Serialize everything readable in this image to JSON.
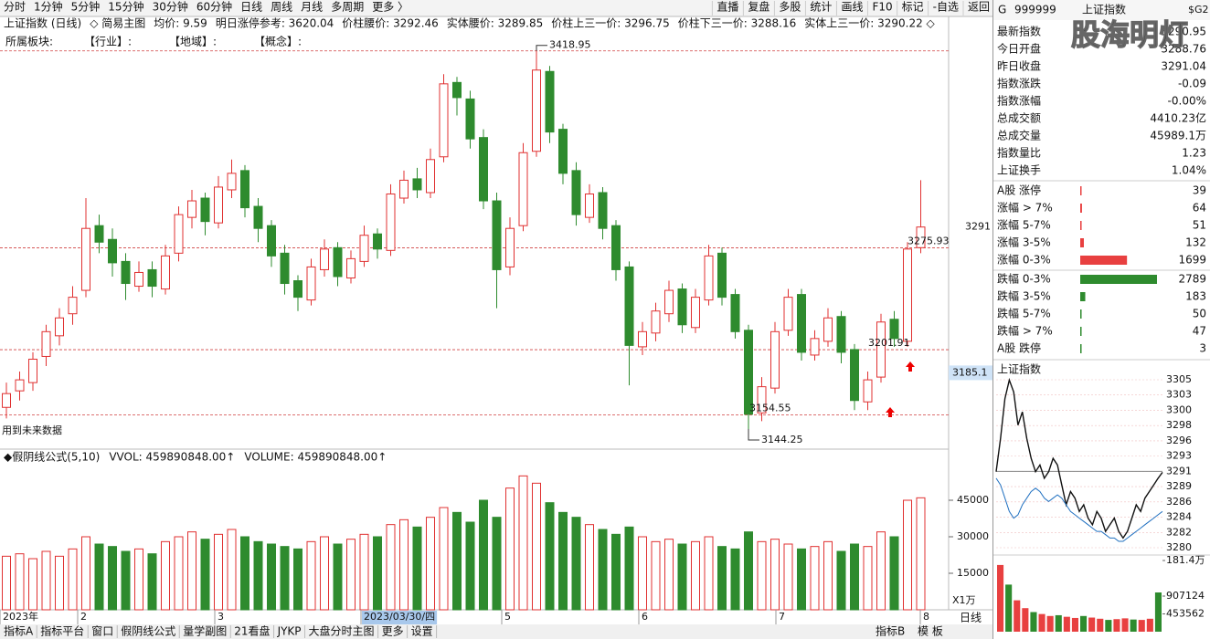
{
  "toolbar": {
    "left": [
      "分时",
      "1分钟",
      "5分钟",
      "15分钟",
      "30分钟",
      "60分钟",
      "日线",
      "周线",
      "月线",
      "多周期",
      "更多 〉"
    ],
    "right": [
      "直播",
      "复盘",
      "多股",
      "统计",
      "画线",
      "F10",
      "标记",
      "-自选",
      "返回"
    ]
  },
  "info_bar": [
    "上证指数 (日线)",
    "◇ 简易主图",
    "均价: 9.59",
    "明日涨停参考: 3620.04",
    "价柱腰价: 3292.46",
    "实体腰价: 3289.85",
    "价柱上三一价: 3296.75",
    "价柱下三一价: 3288.16",
    "实体上三一价: 3290.22 ◇"
  ],
  "sector_line": [
    "所属板块:",
    "【行业】:",
    "【地域】:",
    "【概念】:"
  ],
  "chart_data": {
    "type": "candlestick",
    "open": [
      3160,
      3172,
      3178,
      3197,
      3212,
      3228,
      3245,
      3292,
      3282,
      3266,
      3248,
      3260,
      3246,
      3272,
      3298,
      3312,
      3294,
      3318,
      3332,
      3306,
      3292,
      3272,
      3252,
      3238,
      3260,
      3276,
      3254,
      3266,
      3286,
      3274,
      3312,
      3326,
      3316,
      3342,
      3396,
      3384,
      3356,
      3310,
      3262,
      3292,
      3346,
      3404,
      3362,
      3332,
      3298,
      3316,
      3292,
      3262,
      3204,
      3214,
      3228,
      3246,
      3218,
      3238,
      3272,
      3242,
      3216,
      3156,
      3174,
      3216,
      3242,
      3198,
      3208,
      3226,
      3202,
      3164,
      3182,
      3224,
      3208,
      3276
    ],
    "high": [
      3178,
      3186,
      3200,
      3220,
      3232,
      3248,
      3312,
      3300,
      3290,
      3272,
      3266,
      3266,
      3278,
      3306,
      3318,
      3316,
      3328,
      3340,
      3336,
      3312,
      3296,
      3278,
      3256,
      3268,
      3282,
      3280,
      3274,
      3292,
      3290,
      3322,
      3332,
      3334,
      3348,
      3402,
      3400,
      3390,
      3362,
      3316,
      3298,
      3352,
      3418.95,
      3408,
      3366,
      3338,
      3322,
      3320,
      3296,
      3266,
      3222,
      3236,
      3252,
      3250,
      3246,
      3278,
      3276,
      3246,
      3220,
      3182,
      3222,
      3246,
      3246,
      3216,
      3232,
      3230,
      3206,
      3186,
      3228,
      3230,
      3280,
      3325
    ],
    "low": [
      3152,
      3165,
      3172,
      3190,
      3205,
      3220,
      3240,
      3272,
      3255,
      3238,
      3244,
      3240,
      3242,
      3266,
      3290,
      3285,
      3290,
      3312,
      3298,
      3280,
      3262,
      3242,
      3230,
      3234,
      3255,
      3248,
      3250,
      3262,
      3268,
      3270,
      3308,
      3312,
      3312,
      3338,
      3372,
      3348,
      3304,
      3232,
      3256,
      3288,
      3342,
      3352,
      3322,
      3292,
      3294,
      3282,
      3252,
      3176,
      3198,
      3208,
      3222,
      3214,
      3214,
      3234,
      3234,
      3210,
      3144.25,
      3150,
      3170,
      3212,
      3194,
      3194,
      3204,
      3192,
      3158,
      3158,
      3178,
      3204,
      3204,
      3272
    ],
    "close": [
      3170,
      3180,
      3195,
      3215,
      3225,
      3240,
      3290,
      3280,
      3265,
      3250,
      3258,
      3248,
      3270,
      3300,
      3310,
      3295,
      3320,
      3330,
      3305,
      3290,
      3270,
      3250,
      3240,
      3262,
      3275,
      3255,
      3268,
      3285,
      3275,
      3315,
      3325,
      3318,
      3340,
      3395,
      3385,
      3355,
      3310,
      3260,
      3290,
      3345,
      3405,
      3360,
      3330,
      3300,
      3315,
      3290,
      3260,
      3205,
      3215,
      3230,
      3245,
      3220,
      3240,
      3270,
      3240,
      3215,
      3155,
      3175,
      3215,
      3240,
      3200,
      3210,
      3225,
      3200,
      3165,
      3180,
      3222,
      3210,
      3275,
      3291
    ],
    "ylim": [
      3131,
      3436
    ],
    "colors": {
      "up": "#e03030",
      "down": "#2e8b2e",
      "line": "#d04040"
    },
    "price_lines": [
      3418.95,
      3275.93,
      3201.91,
      3154.55
    ],
    "high_label": 3418.95,
    "low_label": 3144.25,
    "axis_labels": [
      3291,
      3185.1
    ],
    "note": "用到未来数据",
    "x_labels": [
      "2023年",
      "2",
      "3",
      "2023/03/30/四",
      "5",
      "6",
      "7",
      "8"
    ],
    "volume": {
      "title": "◆假阴线公式(5,10)",
      "vvol": "VVOL: 459890848.00↑",
      "volume_label": "VOLUME: 459890848.00↑",
      "values": [
        22000,
        23000,
        21000,
        24000,
        22000,
        25000,
        30000,
        27000,
        26000,
        24000,
        25000,
        23000,
        28000,
        30000,
        32000,
        29000,
        31000,
        33000,
        30000,
        28000,
        27000,
        26000,
        25000,
        28000,
        30000,
        27000,
        29000,
        31000,
        30000,
        35000,
        37000,
        34000,
        38000,
        42000,
        40000,
        36000,
        45000,
        38000,
        50000,
        55000,
        52000,
        44000,
        40000,
        38000,
        35000,
        33000,
        31000,
        34000,
        30000,
        28000,
        29000,
        27000,
        28000,
        30000,
        26000,
        25000,
        32000,
        28000,
        29000,
        27000,
        25000,
        26000,
        28000,
        24000,
        27000,
        26000,
        32000,
        30000,
        45000,
        46000
      ],
      "ylim": [
        0,
        60000
      ],
      "yticks": [
        45000,
        30000,
        15000
      ],
      "unit": "X1万"
    }
  },
  "right_panel": {
    "header": {
      "prefix": "G",
      "code": "999999",
      "name": "上证指数",
      "badge": "$G2"
    },
    "watermark": "股海明灯",
    "stats": [
      {
        "label": "最新指数",
        "value": "3290.95",
        "color": "#e03030"
      },
      {
        "label": "今日开盘",
        "value": "3288.76",
        "color": "#1a8a1a"
      },
      {
        "label": "昨日收盘",
        "value": "3291.04",
        "color": "#111"
      },
      {
        "label": "指数涨跌",
        "value": "-0.09",
        "color": "#1a8a1a"
      },
      {
        "label": "指数涨幅",
        "value": "-0.00%",
        "color": "#1a8a1a"
      },
      {
        "label": "总成交额",
        "value": "4410.23亿",
        "color": "#111"
      },
      {
        "label": "总成交量",
        "value": "45989.1万",
        "color": "#111"
      },
      {
        "label": "指数量比",
        "value": "1.23",
        "color": "#e03030"
      },
      {
        "label": "上证换手",
        "value": "1.04%",
        "color": "#111"
      }
    ],
    "breadth": {
      "up": [
        {
          "label": "A股 涨停",
          "value": 39
        },
        {
          "label": "涨幅 > 7%",
          "value": 64
        },
        {
          "label": "涨幅 5-7%",
          "value": 51
        },
        {
          "label": "涨幅 3-5%",
          "value": 132
        },
        {
          "label": "涨幅 0-3%",
          "value": 1699
        }
      ],
      "down": [
        {
          "label": "跌幅 0-3%",
          "value": 2789
        },
        {
          "label": "跌幅 3-5%",
          "value": 183
        },
        {
          "label": "跌幅 5-7%",
          "value": 50
        },
        {
          "label": "跌幅 > 7%",
          "value": 47
        },
        {
          "label": "A股 跌停",
          "value": 3
        }
      ]
    },
    "intraday": {
      "title": "上证指数",
      "price": [
        3291,
        3296,
        3302,
        3304.8,
        3303,
        3298,
        3300,
        3296,
        3293,
        3291,
        3292,
        3290,
        3291,
        3293,
        3292,
        3289,
        3286,
        3288,
        3287,
        3285,
        3286,
        3284,
        3283,
        3285,
        3284,
        3282,
        3283,
        3284,
        3282,
        3281,
        3282,
        3284,
        3286,
        3285,
        3287,
        3288,
        3289,
        3290,
        3290.9
      ],
      "avg": [
        3290,
        3289,
        3287,
        3285,
        3284,
        3284.5,
        3286,
        3287,
        3288,
        3288.5,
        3288,
        3287,
        3286.5,
        3287,
        3287.5,
        3287,
        3286,
        3285,
        3284.5,
        3284,
        3283.5,
        3283,
        3282.5,
        3282,
        3282,
        3281.5,
        3281,
        3281,
        3280.5,
        3280.5,
        3281,
        3281.5,
        3282,
        3282.5,
        3283,
        3283.5,
        3284,
        3284.5,
        3285
      ],
      "prev_close": 3291.04,
      "ylim": [
        3279.54,
        3304.84
      ],
      "yticks": [
        {
          "value": 3304.84,
          "label": "3305"
        },
        {
          "value": 3302.54,
          "label": "3303"
        },
        {
          "value": 3300.24,
          "label": "3300"
        },
        {
          "value": 3297.94,
          "label": "3298"
        },
        {
          "value": 3295.64,
          "label": "3296"
        },
        {
          "value": 3293.34,
          "label": "3293"
        },
        {
          "value": 3291.04,
          "label": "3291"
        },
        {
          "value": 3288.74,
          "label": "3289"
        },
        {
          "value": 3286.44,
          "label": "3286"
        },
        {
          "value": 3284.14,
          "label": "3284"
        },
        {
          "value": 3281.84,
          "label": "3282"
        },
        {
          "value": 3279.54,
          "label": "3280"
        }
      ],
      "volume": [
        1700000,
        1200000,
        800000,
        600000,
        500000,
        450000,
        400000,
        420000,
        380000,
        350000,
        400000,
        360000,
        330000,
        300000,
        320000,
        340000,
        310000,
        300000,
        330000,
        1000000
      ],
      "vol_ylim": [
        0,
        1814248
      ],
      "vol_ticks": [
        {
          "value": 1814248,
          "label": "181.4万"
        },
        907124,
        453562
      ]
    }
  },
  "bottom_tabs": {
    "left": [
      "指标A",
      "指标平台",
      "窗口",
      "假阴线公式",
      "量学副图",
      "21看盘",
      "JYKP",
      "大盘分时主图",
      "更多",
      "设置"
    ],
    "right": [
      "指标B",
      "模 板"
    ],
    "period": "日线"
  }
}
